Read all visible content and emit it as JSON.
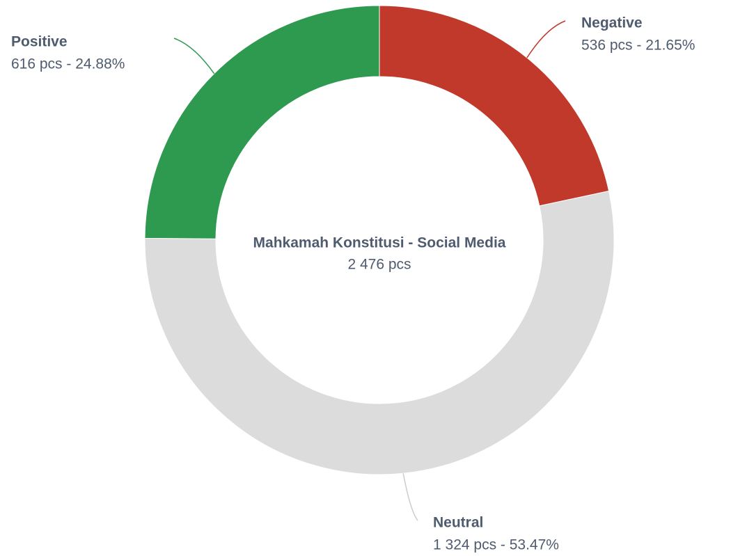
{
  "chart_data": {
    "type": "donut",
    "title": "Mahkamah Konstitusi - Social Media",
    "subtitle": "2 476 pcs",
    "categories": [
      "Negative",
      "Neutral",
      "Positive"
    ],
    "values": [
      536,
      1324,
      616
    ],
    "value_labels": [
      "536 pcs - 21.65%",
      "1 324 pcs - 53.47%",
      "616 pcs - 24.88%"
    ],
    "colors": [
      "#c0392b",
      "#dcdcdc",
      "#2e9a50"
    ]
  }
}
